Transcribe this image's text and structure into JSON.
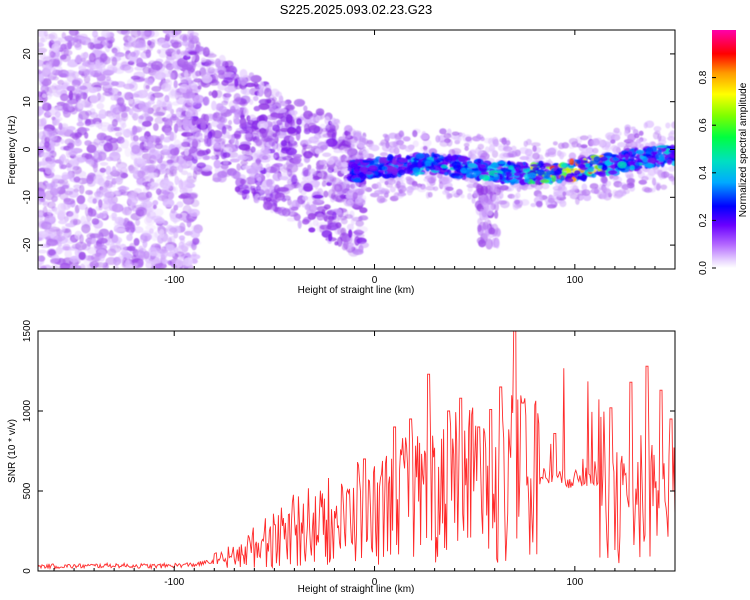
{
  "title": "S225.2025.093.02.23.G23",
  "chart_data": [
    {
      "type": "heatmap",
      "xlabel": "Height of straight line (km)",
      "ylabel": "Frequency (Hz)",
      "xlim": [
        -168,
        150
      ],
      "ylim": [
        -25,
        25
      ],
      "x_ticks": [
        -100,
        0,
        100
      ],
      "y_ticks": [
        -20,
        -10,
        0,
        10,
        20
      ],
      "colorbar": {
        "label": "Normalized spectral amplitude",
        "range": [
          0,
          1
        ],
        "ticks": [
          "0.0",
          "0.2",
          "0.4",
          "0.6",
          "0.8"
        ],
        "tick_values": [
          0.0,
          0.2,
          0.4,
          0.6,
          0.8
        ],
        "colormap": [
          "#ffffff",
          "#d8b4ff",
          "#8a2be2",
          "#6a00ff",
          "#0000ff",
          "#00c8ff",
          "#00ff80",
          "#7fff00",
          "#ffff00",
          "#ffa500",
          "#ff0000",
          "#ff00ff"
        ]
      },
      "signal_ridge": [
        {
          "x": -10,
          "freq": -4.5
        },
        {
          "x": 0,
          "freq": -4
        },
        {
          "x": 10,
          "freq": -3.5
        },
        {
          "x": 20,
          "freq": -3
        },
        {
          "x": 30,
          "freq": -3
        },
        {
          "x": 40,
          "freq": -3.5
        },
        {
          "x": 50,
          "freq": -4
        },
        {
          "x": 60,
          "freq": -4.5
        },
        {
          "x": 70,
          "freq": -5
        },
        {
          "x": 80,
          "freq": -5
        },
        {
          "x": 90,
          "freq": -5
        },
        {
          "x": 100,
          "freq": -4.5
        },
        {
          "x": 110,
          "freq": -3.5
        },
        {
          "x": 120,
          "freq": -3
        },
        {
          "x": 130,
          "freq": -2
        },
        {
          "x": 140,
          "freq": -1.5
        },
        {
          "x": 150,
          "freq": -1
        }
      ],
      "peak_amplitude_region": {
        "x": [
          75,
          115
        ],
        "value": 0.9
      }
    },
    {
      "type": "line",
      "xlabel": "Height of straight line (km)",
      "ylabel": "SNR (10 * v/v)",
      "xlim": [
        -168,
        150
      ],
      "ylim": [
        0,
        1500
      ],
      "x_ticks": [
        -100,
        0,
        100
      ],
      "y_ticks": [
        0,
        500,
        1000,
        1500
      ],
      "color": "#ff2a2a",
      "series": [
        {
          "x": [
            -168,
            -150,
            -130,
            -110,
            -90,
            -80,
            -70,
            -60,
            -50,
            -40,
            -30,
            -20,
            -10,
            0,
            10,
            20,
            30,
            40,
            50,
            60,
            70,
            80,
            90,
            100,
            110,
            115,
            120,
            130,
            140,
            150
          ],
          "values": [
            30,
            30,
            35,
            30,
            40,
            60,
            90,
            150,
            200,
            230,
            270,
            280,
            340,
            380,
            430,
            460,
            480,
            500,
            540,
            480,
            560,
            590,
            590,
            570,
            590,
            540,
            400,
            380,
            420,
            480
          ]
        }
      ],
      "spikes": [
        {
          "x": -5,
          "value": 700
        },
        {
          "x": 10,
          "value": 900
        },
        {
          "x": 18,
          "value": 950
        },
        {
          "x": 27,
          "value": 1230
        },
        {
          "x": 37,
          "value": 1000
        },
        {
          "x": 43,
          "value": 1080
        },
        {
          "x": 52,
          "value": 900
        },
        {
          "x": 58,
          "value": 1010
        },
        {
          "x": 63,
          "value": 1150
        },
        {
          "x": 70,
          "value": 1500
        },
        {
          "x": 74,
          "value": 1050
        },
        {
          "x": 90,
          "value": 860
        },
        {
          "x": 118,
          "value": 1020
        },
        {
          "x": 128,
          "value": 1180
        },
        {
          "x": 136,
          "value": 1280
        },
        {
          "x": 143,
          "value": 1130
        },
        {
          "x": 148,
          "value": 950
        }
      ]
    }
  ]
}
